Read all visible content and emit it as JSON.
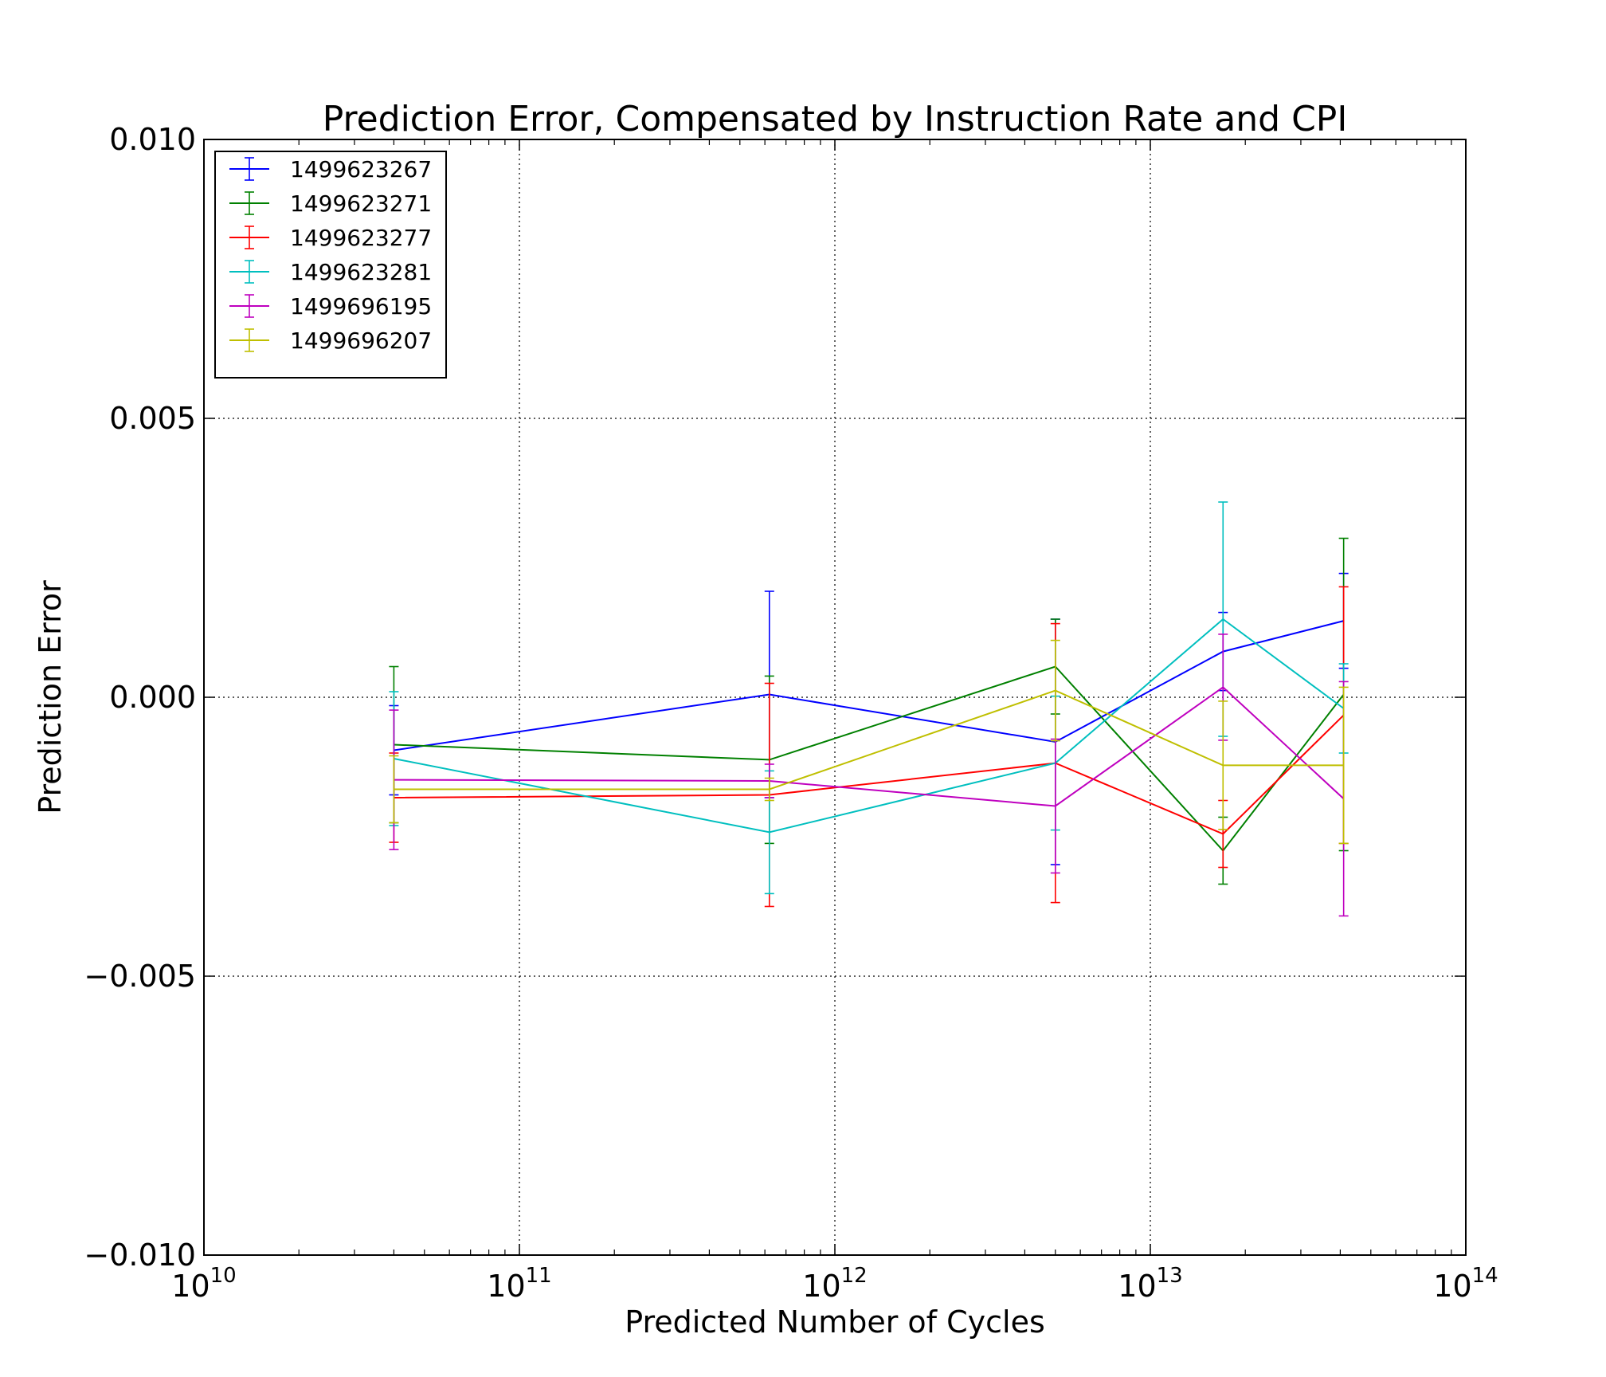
{
  "chart_data": {
    "type": "line",
    "title": "Prediction Error, Compensated by Instruction Rate and CPI",
    "xlabel": "Predicted Number of Cycles",
    "ylabel": "Prediction Error",
    "xscale": "log",
    "xlim": [
      10000000000.0,
      100000000000000.0
    ],
    "ylim": [
      -0.01,
      0.01
    ],
    "grid": true,
    "legend_position": "top-left",
    "x_ticks": [
      {
        "base": "10",
        "exp": "10",
        "value": 10000000000.0
      },
      {
        "base": "10",
        "exp": "11",
        "value": 100000000000.0
      },
      {
        "base": "10",
        "exp": "12",
        "value": 1000000000000.0
      },
      {
        "base": "10",
        "exp": "13",
        "value": 10000000000000.0
      },
      {
        "base": "10",
        "exp": "14",
        "value": 100000000000000.0
      }
    ],
    "y_ticks": [
      {
        "label": "0.010",
        "value": 0.01
      },
      {
        "label": "0.005",
        "value": 0.005
      },
      {
        "label": "0.000",
        "value": 0.0
      },
      {
        "label": "−0.005",
        "value": -0.005
      },
      {
        "label": "−0.010",
        "value": -0.01
      }
    ],
    "x": [
      40000000000.0,
      620000000000.0,
      5000000000000.0,
      17000000000000.0,
      41000000000000.0
    ],
    "series": [
      {
        "name": "1499623267",
        "color": "#0000ff",
        "y": [
          -0.00095,
          5e-05,
          -0.0008,
          0.00082,
          0.00137
        ],
        "err": [
          0.0008,
          0.00185,
          0.0022,
          0.0007,
          0.00085
        ]
      },
      {
        "name": "1499623271",
        "color": "#008000",
        "y": [
          -0.00085,
          -0.00112,
          0.00055,
          -0.00275,
          5e-05
        ],
        "err": [
          0.0014,
          0.0015,
          0.00085,
          0.0006,
          0.0028
        ]
      },
      {
        "name": "1499623277",
        "color": "#ff0000",
        "y": [
          -0.0018,
          -0.00175,
          -0.00118,
          -0.00245,
          -0.00032
        ],
        "err": [
          0.0008,
          0.002,
          0.0025,
          0.0006,
          0.0023
        ]
      },
      {
        "name": "1499623281",
        "color": "#00bfbf",
        "y": [
          -0.0011,
          -0.00242,
          -0.00118,
          0.0014,
          -0.0002
        ],
        "err": [
          0.0012,
          0.0011,
          0.0012,
          0.0021,
          0.0008
        ]
      },
      {
        "name": "1499696195",
        "color": "#bf00bf",
        "y": [
          -0.00148,
          -0.0015,
          -0.00195,
          0.00018,
          -0.00182
        ],
        "err": [
          0.00125,
          0.0003,
          0.0012,
          0.00095,
          0.0021
        ]
      },
      {
        "name": "1499696207",
        "color": "#bfbf00",
        "y": [
          -0.00165,
          -0.00165,
          0.00012,
          -0.00122,
          -0.00122
        ],
        "err": [
          0.0006,
          0.0002,
          0.0009,
          0.00115,
          0.0014
        ]
      }
    ]
  }
}
